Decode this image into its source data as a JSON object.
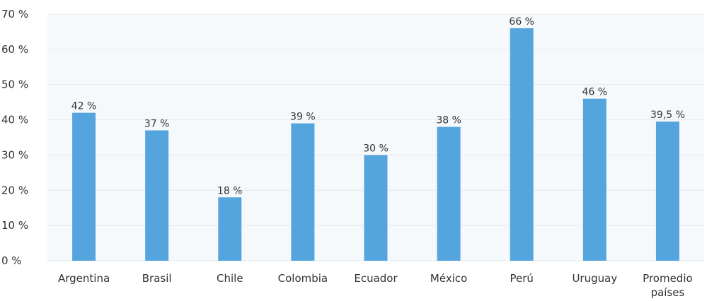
{
  "chart_data": {
    "type": "bar",
    "categories": [
      [
        "Argentina"
      ],
      [
        "Brasil"
      ],
      [
        "Chile"
      ],
      [
        "Colombia"
      ],
      [
        "Ecuador"
      ],
      [
        "México"
      ],
      [
        "Perú"
      ],
      [
        "Uruguay"
      ],
      [
        "Promedio",
        "países"
      ]
    ],
    "values": [
      42,
      37,
      18,
      39,
      30,
      38,
      66,
      46,
      39.5
    ],
    "data_labels": [
      "42 %",
      "37 %",
      "18 %",
      "39 %",
      "30 %",
      "38 %",
      "66 %",
      "46 %",
      "39,5 %"
    ],
    "y_ticks": [
      0,
      10,
      20,
      30,
      40,
      50,
      60,
      70
    ],
    "y_tick_labels": [
      "0 %",
      "10 %",
      "20 %",
      "30 %",
      "40 %",
      "50 %",
      "60 %",
      "70 %"
    ],
    "ylim": [
      0,
      70
    ],
    "grid": true,
    "legend": "none",
    "colors": {
      "bar": "#54a5dd",
      "plot_background": "#f6f9fc"
    }
  }
}
